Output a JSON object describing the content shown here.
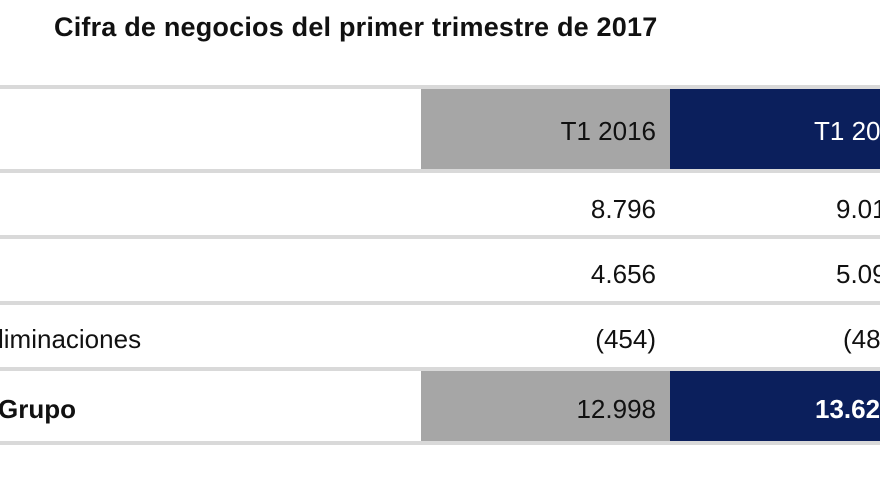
{
  "title": "Cifra de negocios del primer trimestre de 2017",
  "table": {
    "headers": [
      "T1 2016",
      "T1 20"
    ],
    "rows": [
      {
        "label": "",
        "v2016": "8.796",
        "v2017": "9.01"
      },
      {
        "label": "",
        "v2016": "4.656",
        "v2017": "5.09"
      },
      {
        "label": "liminaciones",
        "v2016": "(454)",
        "v2017": "(48"
      },
      {
        "label": "Grupo",
        "v2016": "12.998",
        "v2017": "13.62"
      }
    ]
  },
  "colors": {
    "header_2016": "#a6a6a6",
    "header_2017": "#0b1f5c",
    "rule": "#d9d9d9"
  }
}
